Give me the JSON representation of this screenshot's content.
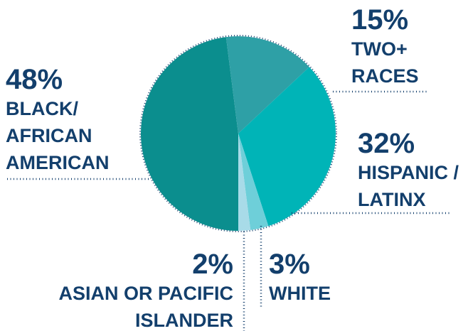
{
  "chart_data": {
    "type": "pie",
    "categories": [
      "BLACK/ AFRICAN AMERICAN",
      "TWO+ RACES",
      "HISPANIC / LATINX",
      "WHITE",
      "ASIAN OR PACIFIC ISLANDER"
    ],
    "values": [
      48,
      15,
      32,
      3,
      2
    ],
    "value_labels": [
      "48%",
      "15%",
      "32%",
      "3%",
      "2%"
    ],
    "colors": [
      "#0b8e8e",
      "#2ea0a6",
      "#00b4b7",
      "#6ecfd9",
      "#a8dbe8"
    ]
  }
}
